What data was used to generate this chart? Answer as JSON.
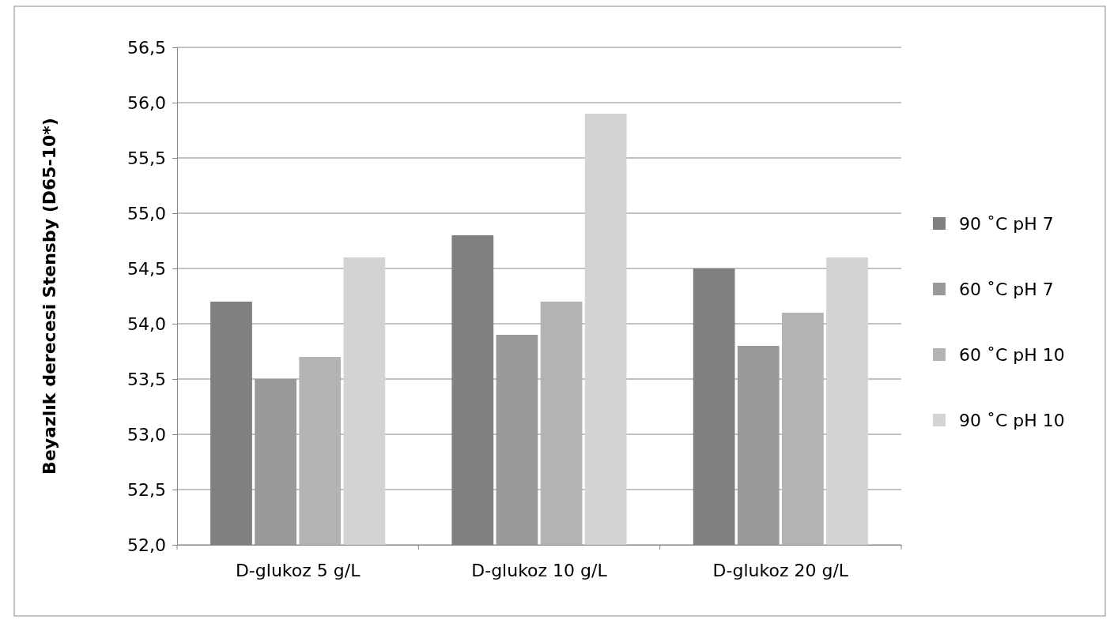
{
  "chart_data": {
    "type": "bar",
    "ylabel": "Beyazlık derecesi Stensby (D65-10*)",
    "categories": [
      "D-glukoz 5 g/L",
      "D-glukoz 10 g/L",
      "D-glukoz 20 g/L"
    ],
    "series": [
      {
        "name": "90 ˚C pH 7",
        "color": "#808080",
        "values": [
          54.2,
          54.8,
          54.5
        ]
      },
      {
        "name": "60 ˚C pH 7",
        "color": "#999999",
        "values": [
          53.5,
          53.9,
          53.8
        ]
      },
      {
        "name": "60 ˚C pH 10",
        "color": "#b3b3b3",
        "values": [
          53.7,
          54.2,
          54.1
        ]
      },
      {
        "name": "90 ˚C pH 10",
        "color": "#d3d3d3",
        "values": [
          54.6,
          55.9,
          54.6
        ]
      }
    ],
    "ylim": [
      52,
      56.5
    ],
    "yticks": [
      {
        "value": 52,
        "label": "52,0"
      },
      {
        "value": 52.5,
        "label": "52,5"
      },
      {
        "value": 53,
        "label": "53,0"
      },
      {
        "value": 53.5,
        "label": "53,5"
      },
      {
        "value": 54,
        "label": "54,0"
      },
      {
        "value": 54.5,
        "label": "54,5"
      },
      {
        "value": 55,
        "label": "55,0"
      },
      {
        "value": 55.5,
        "label": "55,5"
      },
      {
        "value": 56,
        "label": "56,0"
      },
      {
        "value": 56.5,
        "label": "56,5"
      }
    ],
    "grid": "y",
    "legend": "right"
  }
}
